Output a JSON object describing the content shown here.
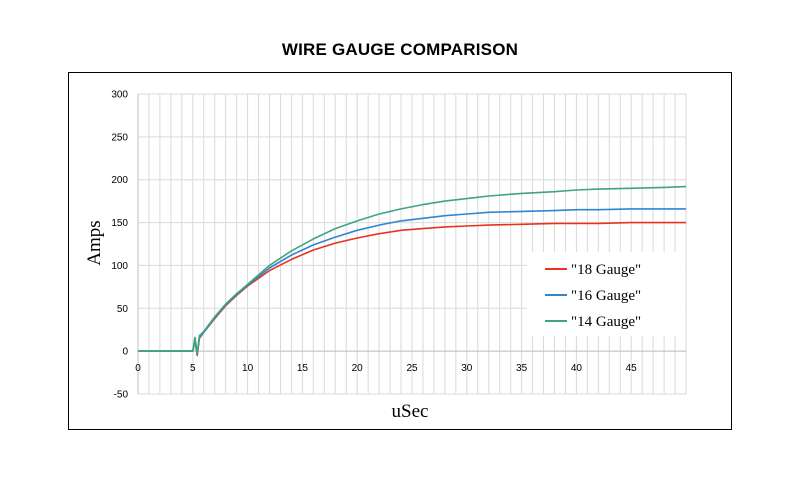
{
  "chart_data": {
    "type": "line",
    "title": "WIRE GAUGE COMPARISON",
    "xlabel": "uSec",
    "ylabel": "Amps",
    "xlim": [
      0,
      50
    ],
    "ylim": [
      -50,
      300
    ],
    "x_ticks": [
      0,
      5,
      10,
      15,
      20,
      25,
      30,
      35,
      40,
      45
    ],
    "y_ticks": [
      -50,
      0,
      50,
      100,
      150,
      200,
      250,
      300
    ],
    "grid": true,
    "legend_position": "lower-right",
    "series": [
      {
        "name": "\"18 Gauge\"",
        "color": "#e8321e",
        "x": [
          0,
          5,
          5.2,
          5.4,
          5.6,
          6,
          7,
          8,
          9,
          10,
          12,
          14,
          16,
          18,
          20,
          22,
          24,
          26,
          28,
          30,
          32,
          35,
          38,
          40,
          42,
          45,
          48,
          50
        ],
        "y": [
          0,
          0,
          12,
          -5,
          15,
          22,
          38,
          53,
          65,
          76,
          94,
          107,
          118,
          126,
          132,
          137,
          141,
          143,
          145,
          146,
          147,
          148,
          149,
          149,
          149,
          150,
          150,
          150
        ]
      },
      {
        "name": "\"16 Gauge\"",
        "color": "#2f86d0",
        "x": [
          0,
          5,
          5.2,
          5.4,
          5.6,
          6,
          7,
          8,
          9,
          10,
          12,
          14,
          16,
          18,
          20,
          22,
          24,
          26,
          28,
          30,
          32,
          35,
          38,
          40,
          42,
          45,
          48,
          50
        ],
        "y": [
          0,
          0,
          14,
          -4,
          16,
          22,
          39,
          54,
          66,
          77,
          97,
          112,
          124,
          133,
          141,
          147,
          152,
          155,
          158,
          160,
          162,
          163,
          164,
          165,
          165,
          166,
          166,
          166
        ]
      },
      {
        "name": "\"14 Gauge\"",
        "color": "#3fa57e",
        "x": [
          0,
          5,
          5.2,
          5.4,
          5.6,
          6,
          7,
          8,
          9,
          10,
          12,
          14,
          16,
          18,
          20,
          22,
          24,
          26,
          28,
          30,
          32,
          35,
          38,
          40,
          42,
          45,
          48,
          50
        ],
        "y": [
          0,
          0,
          16,
          -3,
          18,
          23,
          40,
          55,
          67,
          78,
          100,
          117,
          131,
          143,
          152,
          160,
          166,
          171,
          175,
          178,
          181,
          184,
          186,
          188,
          189,
          190,
          191,
          192
        ]
      }
    ]
  }
}
